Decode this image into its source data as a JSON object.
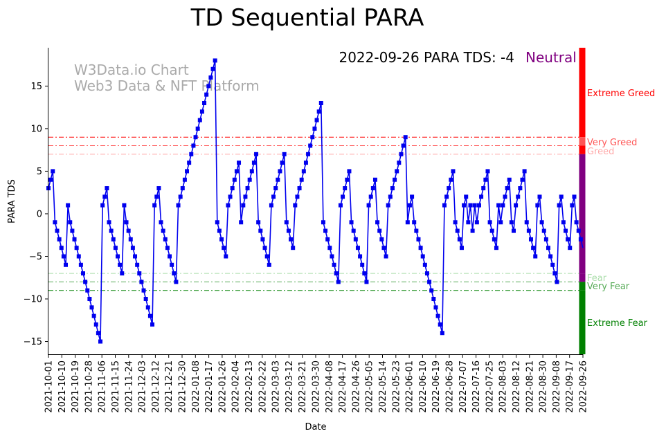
{
  "colors": {
    "series": "#0000ee",
    "extreme_greed": "#ff0000",
    "very_greed": "#ff5555",
    "greed": "#ffaaaa",
    "neutral": "#800080",
    "fear": "#aaddaa",
    "very_fear": "#55aa55",
    "extreme_fear": "#008000"
  },
  "chart_data": {
    "type": "line",
    "title": "TD Sequential PARA",
    "xlabel": "Date",
    "ylabel": "PARA TDS",
    "ylim": [
      -16.5,
      19.5
    ],
    "yticks": [
      15,
      10,
      5,
      0,
      -5,
      -10,
      -15
    ],
    "x_start": "2021-10-01",
    "x_end": "2022-09-26",
    "xticks": [
      "2021-10-01",
      "2021-10-10",
      "2021-10-19",
      "2021-10-28",
      "2021-11-06",
      "2021-11-15",
      "2021-11-24",
      "2021-12-03",
      "2021-12-12",
      "2021-12-21",
      "2021-12-30",
      "2022-01-08",
      "2022-01-17",
      "2022-01-26",
      "2022-02-04",
      "2022-02-13",
      "2022-02-22",
      "2022-03-03",
      "2022-03-12",
      "2022-03-21",
      "2022-03-30",
      "2022-04-08",
      "2022-04-17",
      "2022-04-26",
      "2022-05-05",
      "2022-05-14",
      "2022-05-23",
      "2022-06-01",
      "2022-06-10",
      "2022-06-19",
      "2022-06-28",
      "2022-07-07",
      "2022-07-16",
      "2022-07-25",
      "2022-08-03",
      "2022-08-12",
      "2022-08-21",
      "2022-08-30",
      "2022-09-08",
      "2022-09-17",
      "2022-09-26"
    ],
    "grid": false,
    "series": [
      {
        "values": [
          3,
          4,
          5,
          -1,
          -2,
          -3,
          -4,
          -5,
          -6,
          1,
          -1,
          -2,
          -3,
          -4,
          -5,
          -6,
          -7,
          -8,
          -9,
          -10,
          -11,
          -12,
          -13,
          -14,
          -15,
          1,
          2,
          3,
          -1,
          -2,
          -3,
          -4,
          -5,
          -6,
          -7,
          1,
          -1,
          -2,
          -3,
          -4,
          -5,
          -6,
          -7,
          -8,
          -9,
          -10,
          -11,
          -12,
          -13,
          1,
          2,
          3,
          -1,
          -2,
          -3,
          -4,
          -5,
          -6,
          -7,
          -8,
          1,
          2,
          3,
          4,
          5,
          6,
          7,
          8,
          9,
          10,
          11,
          12,
          13,
          14,
          15,
          16,
          17,
          18,
          -1,
          -2,
          -3,
          -4,
          -5,
          1,
          2,
          3,
          4,
          5,
          6,
          -1,
          1,
          2,
          3,
          4,
          5,
          6,
          7,
          -1,
          -2,
          -3,
          -4,
          -5,
          -6,
          1,
          2,
          3,
          4,
          5,
          6,
          7,
          -1,
          -2,
          -3,
          -4,
          1,
          2,
          3,
          4,
          5,
          6,
          7,
          8,
          9,
          10,
          11,
          12,
          13,
          -1,
          -2,
          -3,
          -4,
          -5,
          -6,
          -7,
          -8,
          1,
          2,
          3,
          4,
          5,
          -1,
          -2,
          -3,
          -4,
          -5,
          -6,
          -7,
          -8,
          1,
          2,
          3,
          4,
          -1,
          -2,
          -3,
          -4,
          -5,
          1,
          2,
          3,
          4,
          5,
          6,
          7,
          8,
          9,
          -1,
          1,
          2,
          -1,
          -2,
          -3,
          -4,
          -5,
          -6,
          -7,
          -8,
          -9,
          -10,
          -11,
          -12,
          -13,
          -14,
          1,
          2,
          3,
          4,
          5,
          -1,
          -2,
          -3,
          -4,
          1,
          2,
          -1,
          1,
          -2,
          1,
          -1,
          1,
          2,
          3,
          4,
          5,
          -1,
          -2,
          -3,
          -4,
          1,
          -1,
          1,
          2,
          3,
          4,
          -1,
          -2,
          1,
          2,
          3,
          4,
          5,
          -1,
          -2,
          -3,
          -4,
          -5,
          1,
          2,
          -1,
          -2,
          -3,
          -4,
          -5,
          -6,
          -7,
          -8,
          1,
          2,
          -1,
          -2,
          -3,
          -4,
          1,
          2,
          -1,
          -2,
          -3,
          -4
        ]
      }
    ],
    "levels": [
      {
        "name": "Extreme Greed",
        "value": 9
      },
      {
        "name": "Very Greed",
        "value": 8
      },
      {
        "name": "Greed",
        "value": 7
      },
      {
        "name": "Fear",
        "value": -7
      },
      {
        "name": "Very Fear",
        "value": -8
      },
      {
        "name": "Extreme Fear",
        "value": -9
      }
    ],
    "status_text": "2022-09-26 PARA TDS: -4",
    "status_state": "Neutral",
    "watermark": [
      "W3Data.io Chart",
      "Web3 Data & NFT Platform"
    ]
  }
}
